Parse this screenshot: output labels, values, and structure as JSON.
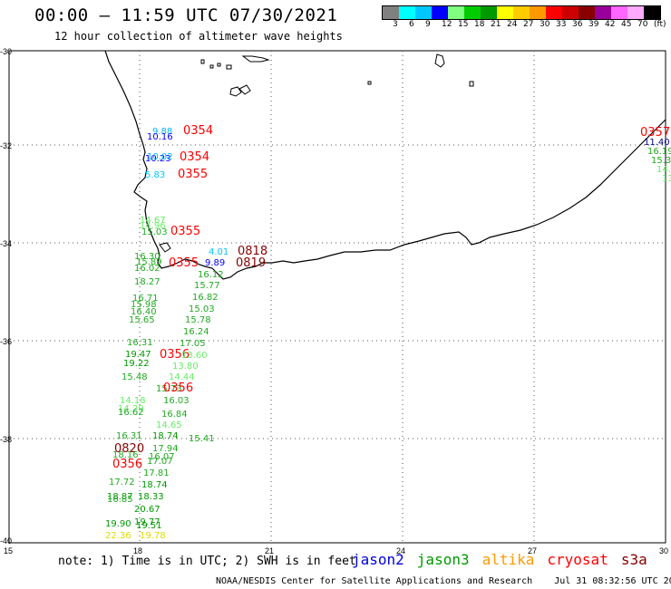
{
  "header": {
    "title": "00:00 – 11:59 UTC 07/30/2021",
    "subtitle": "12 hour collection of altimeter wave heights"
  },
  "legend": {
    "colors": [
      "#808080",
      "#00ffff",
      "#00c8ff",
      "#0000ff",
      "#80ff80",
      "#00cc00",
      "#009900",
      "#ffff00",
      "#ffcc00",
      "#ff9900",
      "#ff0000",
      "#cc0000",
      "#880000",
      "#990099",
      "#ff66ff",
      "#ffaaff",
      "#000000"
    ],
    "labels": [
      "3",
      "6",
      "9",
      "12",
      "15",
      "18",
      "21",
      "24",
      "27",
      "30",
      "33",
      "36",
      "39",
      "42",
      "45",
      "70",
      "(ft)"
    ]
  },
  "axes": {
    "lat_labels": [
      "-30",
      "-32",
      "-34",
      "-36",
      "-38",
      "-40"
    ],
    "lon_labels": [
      "15",
      "18",
      "21",
      "24",
      "27",
      "30"
    ]
  },
  "observations": [
    {
      "text": "9.88",
      "color": "#00b4ff"
    },
    {
      "text": "10.16",
      "color": "#0000ff"
    },
    {
      "text": "0354",
      "color": "#ff0000"
    },
    {
      "text": "10.23",
      "color": "#0000ff"
    },
    {
      "text": "10.02",
      "color": "#00b4ff"
    },
    {
      "text": "0354",
      "color": "#ff0000"
    },
    {
      "text": "5.83",
      "color": "#00c8ff"
    },
    {
      "text": "0355",
      "color": "#ff0000"
    },
    {
      "text": "14.67",
      "color": "#66ee66"
    },
    {
      "text": "14.96",
      "color": "#66ee66"
    },
    {
      "text": "15.03",
      "color": "#22aa22"
    },
    {
      "text": "0355",
      "color": "#ff0000"
    },
    {
      "text": "4.01",
      "color": "#00c8ff"
    },
    {
      "text": "0818",
      "color": "#880000"
    },
    {
      "text": "16.30",
      "color": "#22aa22"
    },
    {
      "text": "15.89",
      "color": "#22aa22"
    },
    {
      "text": "16.02",
      "color": "#22aa22"
    },
    {
      "text": "0355",
      "color": "#ff0000"
    },
    {
      "text": "9.89",
      "color": "#0000ff"
    },
    {
      "text": "0819",
      "color": "#880000"
    },
    {
      "text": "16.12",
      "color": "#22aa22"
    },
    {
      "text": "18.27",
      "color": "#22aa22"
    },
    {
      "text": "15.77",
      "color": "#22aa22"
    },
    {
      "text": "16.71",
      "color": "#22aa22"
    },
    {
      "text": "16.82",
      "color": "#22aa22"
    },
    {
      "text": "15.98",
      "color": "#22aa22"
    },
    {
      "text": "16.40",
      "color": "#22aa22"
    },
    {
      "text": "15.03",
      "color": "#22aa22"
    },
    {
      "text": "15.65",
      "color": "#22aa22"
    },
    {
      "text": "15.78",
      "color": "#22aa22"
    },
    {
      "text": "16.24",
      "color": "#22aa22"
    },
    {
      "text": "16.31",
      "color": "#22aa22"
    },
    {
      "text": "17.05",
      "color": "#22aa22"
    },
    {
      "text": "19.47",
      "color": "#009900"
    },
    {
      "text": "0356",
      "color": "#ff0000"
    },
    {
      "text": "13.60",
      "color": "#66ee66"
    },
    {
      "text": "19.22",
      "color": "#009900"
    },
    {
      "text": "13.80",
      "color": "#66ee66"
    },
    {
      "text": "15.48",
      "color": "#22aa22"
    },
    {
      "text": "14.44",
      "color": "#66ee66"
    },
    {
      "text": "15.73",
      "color": "#22aa22"
    },
    {
      "text": "0356",
      "color": "#ff0000"
    },
    {
      "text": "14.18",
      "color": "#66ee66"
    },
    {
      "text": "16.03",
      "color": "#22aa22"
    },
    {
      "text": "14.29",
      "color": "#66ee66"
    },
    {
      "text": "16.62",
      "color": "#22aa22"
    },
    {
      "text": "16.84",
      "color": "#22aa22"
    },
    {
      "text": "14.65",
      "color": "#66ee66"
    },
    {
      "text": "16.31",
      "color": "#22aa22"
    },
    {
      "text": "18.74",
      "color": "#009900"
    },
    {
      "text": "15.41",
      "color": "#22aa22"
    },
    {
      "text": "0820",
      "color": "#880000"
    },
    {
      "text": "17.94",
      "color": "#22aa22"
    },
    {
      "text": "18.16",
      "color": "#22aa22"
    },
    {
      "text": "16.07",
      "color": "#22aa22"
    },
    {
      "text": "0356",
      "color": "#ff0000"
    },
    {
      "text": "17.07",
      "color": "#22aa22"
    },
    {
      "text": "17.81",
      "color": "#22aa22"
    },
    {
      "text": "17.72",
      "color": "#22aa22"
    },
    {
      "text": "18.74",
      "color": "#009900"
    },
    {
      "text": "18.87",
      "color": "#009900"
    },
    {
      "text": "16.85",
      "color": "#22aa22"
    },
    {
      "text": "18.33",
      "color": "#009900"
    },
    {
      "text": "20.67",
      "color": "#009900"
    },
    {
      "text": "19.90",
      "color": "#009900"
    },
    {
      "text": "19.77",
      "color": "#009900"
    },
    {
      "text": "22.36",
      "color": "#dddd00"
    },
    {
      "text": "19.51",
      "color": "#009900"
    },
    {
      "text": "19.78",
      "color": "#dddd00"
    },
    {
      "text": "0357",
      "color": "#ff0000"
    },
    {
      "text": "11.40",
      "color": "#000088"
    },
    {
      "text": "16.19",
      "color": "#22aa22"
    },
    {
      "text": "15.3",
      "color": "#22aa22"
    },
    {
      "text": "14.",
      "color": "#66ee66"
    },
    {
      "text": "13.",
      "color": "#66ee66"
    },
    {
      "text": "12",
      "color": "#66ee66"
    }
  ],
  "footer": {
    "note": "note: 1) Time is in UTC; 2) SWH is in feet",
    "credit": "NOAA/NESDIS Center for Satellite Applications and Research",
    "timestamp": "Jul 31 08:32:56 UTC 2021"
  },
  "satellites": [
    {
      "name": "jason2",
      "color": "#0000dd"
    },
    {
      "name": "jason3",
      "color": "#009900"
    },
    {
      "name": "altika",
      "color": "#ff9900"
    },
    {
      "name": "cryosat",
      "color": "#ff0000"
    },
    {
      "name": "s3a",
      "color": "#880000"
    }
  ]
}
